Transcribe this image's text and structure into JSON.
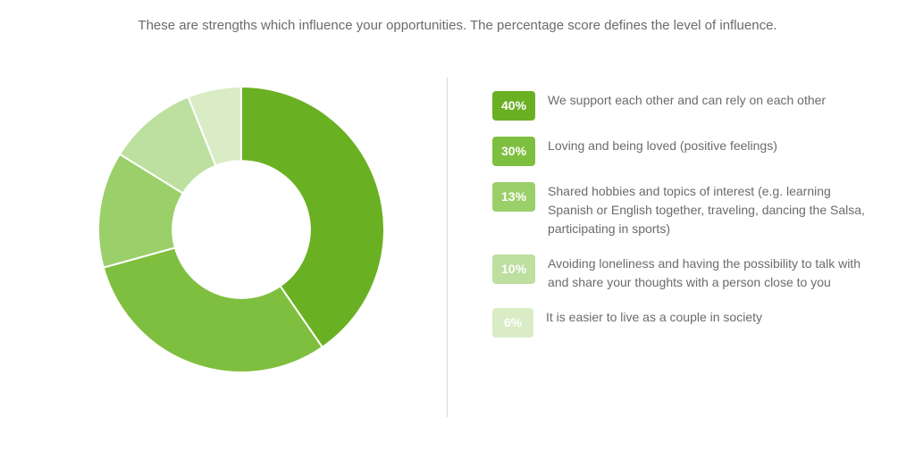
{
  "header": "These are strengths which influence your opportunities. The percentage score defines the level of influence.",
  "chart": {
    "type": "donut",
    "inner_radius_ratio": 0.48,
    "outer_radius": 160,
    "background_color": "#ffffff",
    "gap_stroke": "#ffffff",
    "gap_width": 2,
    "start_angle_deg": -90,
    "segments": [
      {
        "value": 40,
        "color": "#6ab023",
        "badge_text": "40%",
        "label": "We support each other and can rely on each other"
      },
      {
        "value": 30,
        "color": "#7fbf3f",
        "badge_text": "30%",
        "label": "Loving and being loved (positive feelings)"
      },
      {
        "value": 13,
        "color": "#9bcf6a",
        "badge_text": "13%",
        "label": "Shared hobbies and topics of interest (e.g. learning Spanish or English together, traveling, dancing the Salsa, participating in sports)"
      },
      {
        "value": 10,
        "color": "#bddf9f",
        "badge_text": "10%",
        "label": "Avoiding loneliness and having the possibility to talk with and share your thoughts with a person close to you"
      },
      {
        "value": 6,
        "color": "#d9ecc5",
        "badge_text": "6%",
        "label": "It is easier to live as a couple in society"
      }
    ]
  },
  "text_color": "#6b6b6b",
  "divider_color": "#d9d9d9"
}
